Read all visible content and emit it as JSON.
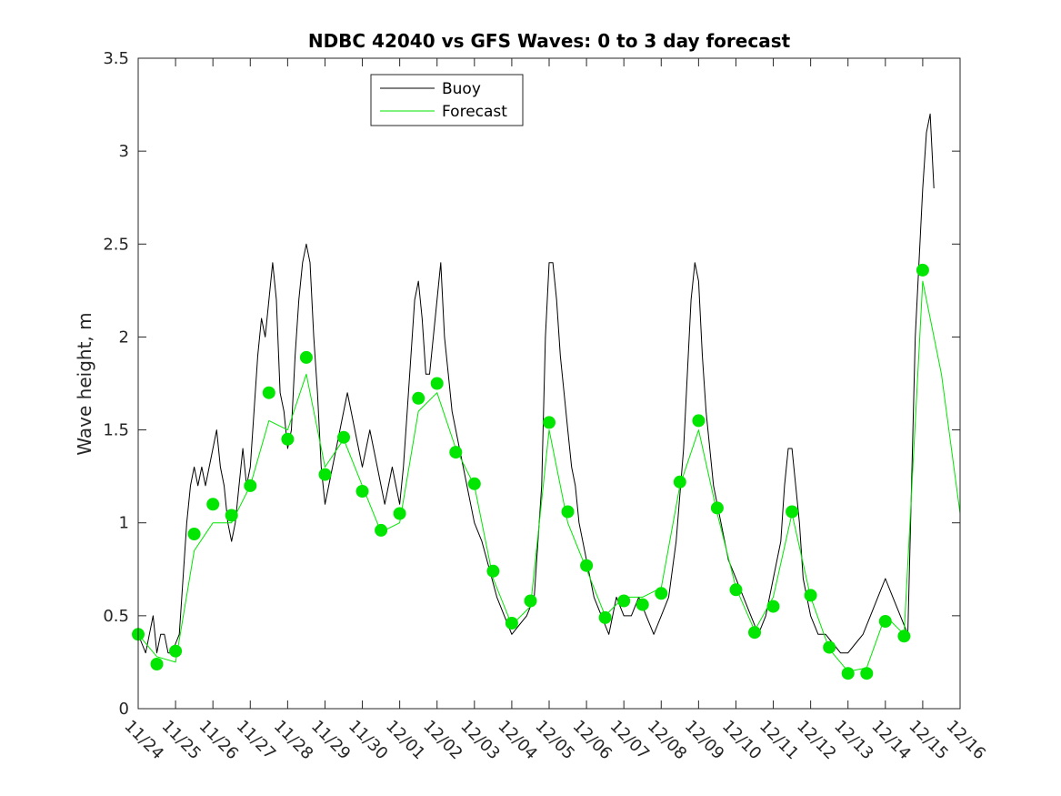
{
  "chart_data": {
    "type": "line",
    "title": "NDBC 42040 vs GFS Waves: 0 to 3 day forecast",
    "xlabel": "",
    "ylabel": "Wave height, m",
    "xlim": [
      0,
      22
    ],
    "ylim": [
      0,
      3.5
    ],
    "x_tick_labels": [
      "11/24",
      "11/25",
      "11/26",
      "11/27",
      "11/28",
      "11/29",
      "11/30",
      "12/01",
      "12/02",
      "12/03",
      "12/04",
      "12/05",
      "12/06",
      "12/07",
      "12/08",
      "12/09",
      "12/10",
      "12/11",
      "12/12",
      "12/13",
      "12/14",
      "12/15",
      "12/16"
    ],
    "y_ticks": [
      0,
      0.5,
      1,
      1.5,
      2,
      2.5,
      3,
      3.5
    ],
    "y_tick_labels": [
      "0",
      "0.5",
      "1",
      "1.5",
      "2",
      "2.5",
      "3",
      "3.5"
    ],
    "legend": {
      "position": "top-center",
      "entries": [
        {
          "name": "Buoy",
          "color": "#000000"
        },
        {
          "name": "Forecast",
          "color": "#00e600"
        }
      ]
    },
    "series": [
      {
        "name": "Buoy",
        "color": "#000000",
        "points": [
          [
            0,
            0.4
          ],
          [
            0.1,
            0.35
          ],
          [
            0.2,
            0.3
          ],
          [
            0.3,
            0.4
          ],
          [
            0.4,
            0.5
          ],
          [
            0.5,
            0.3
          ],
          [
            0.6,
            0.4
          ],
          [
            0.7,
            0.4
          ],
          [
            0.8,
            0.3
          ],
          [
            0.9,
            0.3
          ],
          [
            1.0,
            0.35
          ],
          [
            1.1,
            0.4
          ],
          [
            1.2,
            0.7
          ],
          [
            1.3,
            1.0
          ],
          [
            1.4,
            1.2
          ],
          [
            1.5,
            1.3
          ],
          [
            1.6,
            1.2
          ],
          [
            1.7,
            1.3
          ],
          [
            1.8,
            1.2
          ],
          [
            1.9,
            1.3
          ],
          [
            2.0,
            1.4
          ],
          [
            2.1,
            1.5
          ],
          [
            2.2,
            1.3
          ],
          [
            2.3,
            1.2
          ],
          [
            2.4,
            1.0
          ],
          [
            2.5,
            0.9
          ],
          [
            2.6,
            1.0
          ],
          [
            2.7,
            1.2
          ],
          [
            2.8,
            1.4
          ],
          [
            2.9,
            1.2
          ],
          [
            3.0,
            1.3
          ],
          [
            3.1,
            1.6
          ],
          [
            3.2,
            1.9
          ],
          [
            3.3,
            2.1
          ],
          [
            3.4,
            2.0
          ],
          [
            3.5,
            2.2
          ],
          [
            3.6,
            2.4
          ],
          [
            3.7,
            2.2
          ],
          [
            3.8,
            1.7
          ],
          [
            3.9,
            1.6
          ],
          [
            4.0,
            1.4
          ],
          [
            4.1,
            1.5
          ],
          [
            4.2,
            1.9
          ],
          [
            4.3,
            2.2
          ],
          [
            4.4,
            2.4
          ],
          [
            4.5,
            2.5
          ],
          [
            4.6,
            2.4
          ],
          [
            4.7,
            2.0
          ],
          [
            4.8,
            1.7
          ],
          [
            4.9,
            1.3
          ],
          [
            5.0,
            1.1
          ],
          [
            5.1,
            1.2
          ],
          [
            5.2,
            1.3
          ],
          [
            5.3,
            1.4
          ],
          [
            5.4,
            1.5
          ],
          [
            5.5,
            1.6
          ],
          [
            5.6,
            1.7
          ],
          [
            5.7,
            1.6
          ],
          [
            5.8,
            1.5
          ],
          [
            5.9,
            1.4
          ],
          [
            6.0,
            1.3
          ],
          [
            6.1,
            1.4
          ],
          [
            6.2,
            1.5
          ],
          [
            6.3,
            1.4
          ],
          [
            6.4,
            1.3
          ],
          [
            6.5,
            1.2
          ],
          [
            6.6,
            1.1
          ],
          [
            6.7,
            1.2
          ],
          [
            6.8,
            1.3
          ],
          [
            6.9,
            1.2
          ],
          [
            7.0,
            1.1
          ],
          [
            7.1,
            1.3
          ],
          [
            7.2,
            1.6
          ],
          [
            7.3,
            1.9
          ],
          [
            7.4,
            2.2
          ],
          [
            7.5,
            2.3
          ],
          [
            7.6,
            2.1
          ],
          [
            7.7,
            1.8
          ],
          [
            7.8,
            1.8
          ],
          [
            7.9,
            2.0
          ],
          [
            8.0,
            2.2
          ],
          [
            8.1,
            2.4
          ],
          [
            8.2,
            2.0
          ],
          [
            8.3,
            1.8
          ],
          [
            8.4,
            1.6
          ],
          [
            8.5,
            1.5
          ],
          [
            8.6,
            1.4
          ],
          [
            8.7,
            1.3
          ],
          [
            8.8,
            1.2
          ],
          [
            8.9,
            1.1
          ],
          [
            9.0,
            1.0
          ],
          [
            9.2,
            0.9
          ],
          [
            9.4,
            0.75
          ],
          [
            9.6,
            0.6
          ],
          [
            9.8,
            0.5
          ],
          [
            10.0,
            0.4
          ],
          [
            10.2,
            0.45
          ],
          [
            10.4,
            0.5
          ],
          [
            10.6,
            0.6
          ],
          [
            10.8,
            1.2
          ],
          [
            10.9,
            2.0
          ],
          [
            11.0,
            2.4
          ],
          [
            11.1,
            2.4
          ],
          [
            11.2,
            2.2
          ],
          [
            11.3,
            1.9
          ],
          [
            11.4,
            1.7
          ],
          [
            11.5,
            1.5
          ],
          [
            11.6,
            1.3
          ],
          [
            11.7,
            1.2
          ],
          [
            11.8,
            1.0
          ],
          [
            12.0,
            0.8
          ],
          [
            12.2,
            0.6
          ],
          [
            12.4,
            0.5
          ],
          [
            12.6,
            0.4
          ],
          [
            12.8,
            0.6
          ],
          [
            13.0,
            0.5
          ],
          [
            13.2,
            0.5
          ],
          [
            13.4,
            0.6
          ],
          [
            13.6,
            0.5
          ],
          [
            13.8,
            0.4
          ],
          [
            14.0,
            0.5
          ],
          [
            14.2,
            0.6
          ],
          [
            14.4,
            0.9
          ],
          [
            14.6,
            1.4
          ],
          [
            14.7,
            1.8
          ],
          [
            14.8,
            2.2
          ],
          [
            14.9,
            2.4
          ],
          [
            15.0,
            2.3
          ],
          [
            15.1,
            1.9
          ],
          [
            15.2,
            1.6
          ],
          [
            15.3,
            1.4
          ],
          [
            15.4,
            1.2
          ],
          [
            15.5,
            1.1
          ],
          [
            15.6,
            1.0
          ],
          [
            15.8,
            0.8
          ],
          [
            16.0,
            0.7
          ],
          [
            16.2,
            0.6
          ],
          [
            16.4,
            0.5
          ],
          [
            16.6,
            0.4
          ],
          [
            16.8,
            0.5
          ],
          [
            17.0,
            0.7
          ],
          [
            17.2,
            0.9
          ],
          [
            17.3,
            1.2
          ],
          [
            17.4,
            1.4
          ],
          [
            17.5,
            1.4
          ],
          [
            17.6,
            1.2
          ],
          [
            17.7,
            1.0
          ],
          [
            17.8,
            0.7
          ],
          [
            18.0,
            0.5
          ],
          [
            18.2,
            0.4
          ],
          [
            18.4,
            0.4
          ],
          [
            18.6,
            0.35
          ],
          [
            18.8,
            0.3
          ],
          [
            19.0,
            0.3
          ],
          [
            19.2,
            0.35
          ],
          [
            19.4,
            0.4
          ],
          [
            19.6,
            0.5
          ],
          [
            19.8,
            0.6
          ],
          [
            20.0,
            0.7
          ],
          [
            20.2,
            0.6
          ],
          [
            20.4,
            0.5
          ],
          [
            20.6,
            0.4
          ],
          [
            20.7,
            1.2
          ],
          [
            20.8,
            2.0
          ],
          [
            20.9,
            2.4
          ],
          [
            21.0,
            2.8
          ],
          [
            21.1,
            3.1
          ],
          [
            21.2,
            3.2
          ],
          [
            21.3,
            2.8
          ]
        ]
      },
      {
        "name": "Forecast",
        "color": "#00e600",
        "points": [
          [
            0,
            0.4
          ],
          [
            0.5,
            0.28
          ],
          [
            1.0,
            0.25
          ],
          [
            1.5,
            0.85
          ],
          [
            2.0,
            1.0
          ],
          [
            2.5,
            1.0
          ],
          [
            3.0,
            1.2
          ],
          [
            3.5,
            1.55
          ],
          [
            4.0,
            1.5
          ],
          [
            4.5,
            1.8
          ],
          [
            5.0,
            1.3
          ],
          [
            5.5,
            1.45
          ],
          [
            6.0,
            1.2
          ],
          [
            6.5,
            0.95
          ],
          [
            7.0,
            1.0
          ],
          [
            7.5,
            1.6
          ],
          [
            8.0,
            1.7
          ],
          [
            8.5,
            1.4
          ],
          [
            9.0,
            1.2
          ],
          [
            9.5,
            0.7
          ],
          [
            10.0,
            0.45
          ],
          [
            10.5,
            0.55
          ],
          [
            11.0,
            1.5
          ],
          [
            11.5,
            1.0
          ],
          [
            12.0,
            0.75
          ],
          [
            12.5,
            0.5
          ],
          [
            13.0,
            0.6
          ],
          [
            13.5,
            0.6
          ],
          [
            14.0,
            0.65
          ],
          [
            14.5,
            1.2
          ],
          [
            15.0,
            1.5
          ],
          [
            15.5,
            1.05
          ],
          [
            16.0,
            0.65
          ],
          [
            16.5,
            0.42
          ],
          [
            17.0,
            0.6
          ],
          [
            17.5,
            1.05
          ],
          [
            18.0,
            0.6
          ],
          [
            18.5,
            0.32
          ],
          [
            19.0,
            0.2
          ],
          [
            19.5,
            0.22
          ],
          [
            20.0,
            0.5
          ],
          [
            20.5,
            0.4
          ],
          [
            21.0,
            2.3
          ],
          [
            21.5,
            1.8
          ],
          [
            22.0,
            1.05
          ]
        ]
      }
    ],
    "forecast_markers": [
      [
        0,
        0.4
      ],
      [
        0.5,
        0.24
      ],
      [
        1.0,
        0.31
      ],
      [
        1.5,
        0.94
      ],
      [
        2.0,
        1.1
      ],
      [
        2.5,
        1.04
      ],
      [
        3.0,
        1.2
      ],
      [
        3.5,
        1.7
      ],
      [
        4.0,
        1.45
      ],
      [
        4.5,
        1.89
      ],
      [
        5.0,
        1.26
      ],
      [
        5.5,
        1.46
      ],
      [
        6.0,
        1.17
      ],
      [
        6.5,
        0.96
      ],
      [
        7.0,
        1.05
      ],
      [
        7.5,
        1.67
      ],
      [
        8.0,
        1.75
      ],
      [
        8.5,
        1.38
      ],
      [
        9.0,
        1.21
      ],
      [
        9.5,
        0.74
      ],
      [
        10.0,
        0.46
      ],
      [
        10.5,
        0.58
      ],
      [
        11.0,
        1.54
      ],
      [
        11.5,
        1.06
      ],
      [
        12.0,
        0.77
      ],
      [
        12.5,
        0.49
      ],
      [
        13.0,
        0.58
      ],
      [
        13.5,
        0.56
      ],
      [
        14.0,
        0.62
      ],
      [
        14.5,
        1.22
      ],
      [
        15.0,
        1.55
      ],
      [
        15.5,
        1.08
      ],
      [
        16.0,
        0.64
      ],
      [
        16.5,
        0.41
      ],
      [
        17.0,
        0.55
      ],
      [
        17.5,
        1.06
      ],
      [
        18.0,
        0.61
      ],
      [
        18.5,
        0.33
      ],
      [
        19.0,
        0.19
      ],
      [
        19.5,
        0.19
      ],
      [
        20.0,
        0.47
      ],
      [
        20.5,
        0.39
      ],
      [
        21.0,
        2.36
      ]
    ]
  }
}
